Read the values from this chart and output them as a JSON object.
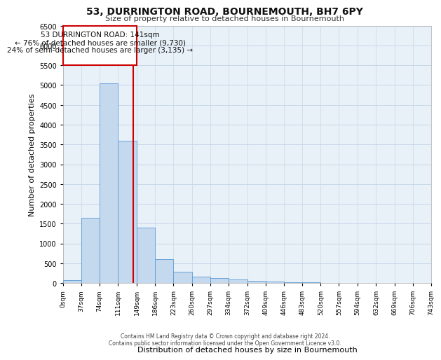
{
  "title1": "53, DURRINGTON ROAD, BOURNEMOUTH, BH7 6PY",
  "title2": "Size of property relative to detached houses in Bournemouth",
  "xlabel": "Distribution of detached houses by size in Bournemouth",
  "ylabel": "Number of detached properties",
  "footer1": "Contains HM Land Registry data © Crown copyright and database right 2024.",
  "footer2": "Contains public sector information licensed under the Open Government Licence v3.0.",
  "annotation_line1": "53 DURRINGTON ROAD: 141sqm",
  "annotation_line2": "← 76% of detached houses are smaller (9,730)",
  "annotation_line3": "24% of semi-detached houses are larger (3,135) →",
  "property_size": 141,
  "bin_edges": [
    0,
    37,
    74,
    111,
    149,
    186,
    223,
    260,
    297,
    334,
    372,
    409,
    446,
    483,
    520,
    557,
    594,
    632,
    669,
    706,
    743
  ],
  "bin_counts": [
    75,
    1650,
    5050,
    3600,
    1400,
    600,
    280,
    155,
    120,
    90,
    55,
    35,
    20,
    12,
    8,
    5,
    4,
    3,
    2,
    2
  ],
  "bar_color": "#c5d9ee",
  "bar_edge_color": "#5b9bd5",
  "red_line_color": "#cc0000",
  "annotation_box_color": "#cc0000",
  "grid_color": "#c8d8e8",
  "bg_color": "#e8f0f8",
  "ylim": [
    0,
    6500
  ],
  "yticks": [
    0,
    500,
    1000,
    1500,
    2000,
    2500,
    3000,
    3500,
    4000,
    4500,
    5000,
    5500,
    6000,
    6500
  ]
}
